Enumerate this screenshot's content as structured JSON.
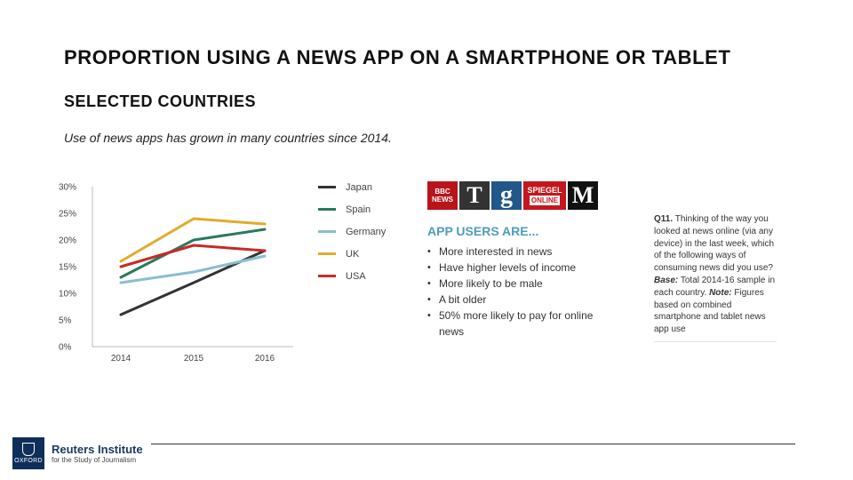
{
  "slide": {
    "title": "PROPORTION USING A NEWS APP ON A SMARTPHONE OR TABLET",
    "subtitle": "SELECTED COUNTRIES",
    "intro": "Use of news apps has grown in many countries since 2014."
  },
  "chart_data": {
    "type": "line",
    "x": [
      "2014",
      "2015",
      "2016"
    ],
    "ylim": [
      0,
      30
    ],
    "yticks": [
      0,
      5,
      10,
      15,
      20,
      25,
      30
    ],
    "ytick_labels": [
      "0%",
      "5%",
      "10%",
      "15%",
      "20%",
      "25%",
      "30%"
    ],
    "grid": false,
    "legend_position": "right",
    "series": [
      {
        "name": "Japan",
        "color": "#333333",
        "values": [
          6,
          12,
          18
        ]
      },
      {
        "name": "Spain",
        "color": "#2a7a5e",
        "values": [
          13,
          20,
          22
        ]
      },
      {
        "name": "Germany",
        "color": "#8bbdd0",
        "values": [
          12,
          14,
          17
        ]
      },
      {
        "name": "UK",
        "color": "#e0ac2b",
        "values": [
          16,
          24,
          23
        ]
      },
      {
        "name": "USA",
        "color": "#c62b27",
        "values": [
          15,
          19,
          18
        ]
      }
    ]
  },
  "logos": {
    "bbc_line1": "BBC",
    "bbc_line2": "NEWS",
    "telegraph": "T",
    "guardian": "g",
    "spiegel_line1": "SPIEGEL",
    "spiegel_line2": "ONLINE",
    "mail": "M"
  },
  "app_users": {
    "heading": "APP USERS ARE...",
    "items": [
      "More interested in news",
      "Have higher levels of income",
      "More likely to be male",
      "A bit older",
      "50% more likely to pay for online news"
    ]
  },
  "note": {
    "question_label": "Q11.",
    "question_text": " Thinking of the way you looked at news online (via any device) in the last week, which of the following ways of consuming news did you use?",
    "base_label": " Base:",
    "base_text": " Total 2014-16 sample in each country.",
    "note_label": " Note:",
    "note_text": " Figures based on combined smartphone and tablet news app use"
  },
  "footer": {
    "crest_text": "OXFORD",
    "institute_name": "Reuters Institute",
    "institute_sub": "for the Study of Journalism"
  }
}
